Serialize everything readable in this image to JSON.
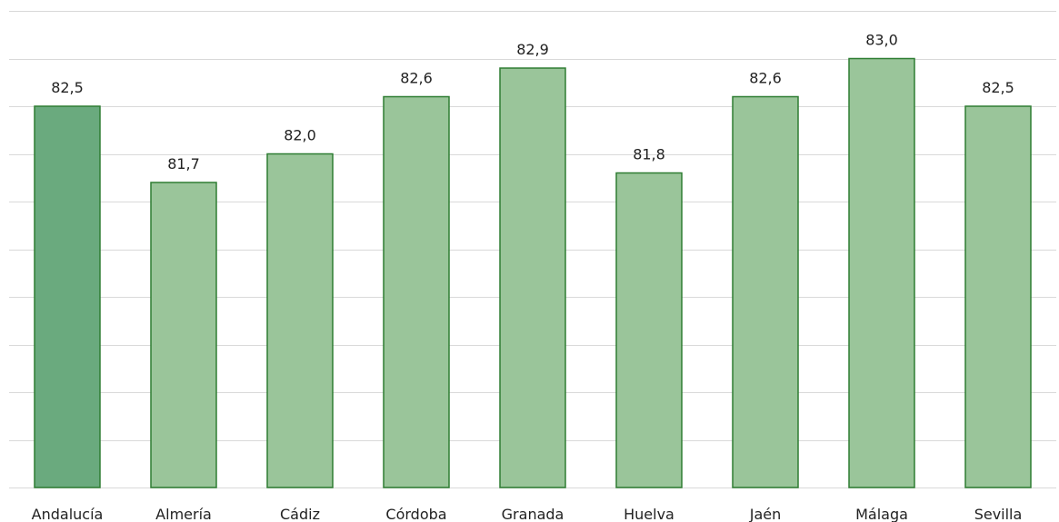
{
  "chart_data": {
    "type": "bar",
    "categories": [
      "Andalucía",
      "Almería",
      "Cádiz",
      "Córdoba",
      "Granada",
      "Huelva",
      "Jaén",
      "Málaga",
      "Sevilla"
    ],
    "values": [
      82.5,
      81.7,
      82.0,
      82.6,
      82.9,
      81.8,
      82.6,
      83.0,
      82.5
    ],
    "value_labels": [
      "82,5",
      "81,7",
      "82,0",
      "82,6",
      "82,9",
      "81,8",
      "82,6",
      "83,0",
      "82,5"
    ],
    "title": "",
    "xlabel": "",
    "ylabel": "",
    "ylim": [
      78.5,
      83.5
    ],
    "grid": true,
    "colors": {
      "highlight_bar": "#6aaa7e",
      "bar": "#9ac59a",
      "bar_outline": "#2e7d32",
      "grid": "#d9d9d9"
    }
  }
}
